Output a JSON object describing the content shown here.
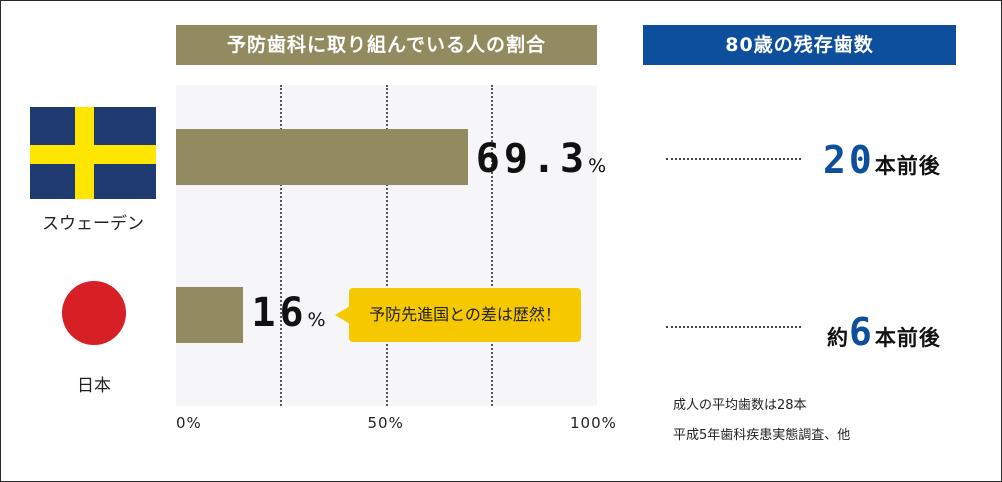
{
  "header_left": "予防歯科に取り組んでいる人の割合",
  "header_right": "80歳の残存歯数",
  "chart_data": {
    "type": "bar",
    "orientation": "horizontal",
    "title": "予防歯科に取り組んでいる人の割合",
    "categories": [
      "スウェーデン",
      "日本"
    ],
    "values": [
      69.3,
      16
    ],
    "value_labels": [
      "69.3",
      "16"
    ],
    "value_unit": "%",
    "xlim": [
      0,
      100
    ],
    "x_ticks": [
      "0%",
      "50%",
      "100%"
    ],
    "gridlines_at": [
      25,
      50,
      75
    ],
    "bar_color": "#938b60"
  },
  "callout": "予防先進国との差は歴然！",
  "countries": [
    {
      "name": "スウェーデン",
      "flag": "sweden-flag"
    },
    {
      "name": "日本",
      "flag": "japan-flag"
    }
  ],
  "remaining_teeth": [
    {
      "prefix": "",
      "number": "20",
      "suffix": "本前後"
    },
    {
      "prefix": "約",
      "number": "6",
      "suffix": "本前後"
    }
  ],
  "notes": {
    "average": "成人の平均歯数は28本",
    "source": "平成5年歯科疾患実態調査、他"
  },
  "colors": {
    "accent_olive": "#938b60",
    "accent_blue": "#0d4f9c",
    "callout_yellow": "#f5c800"
  }
}
